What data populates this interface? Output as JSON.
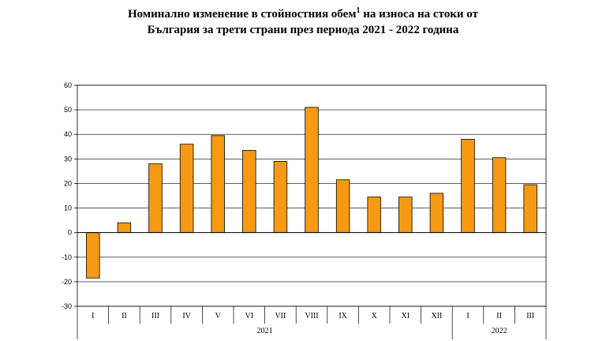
{
  "chart_data": {
    "type": "bar",
    "title_line1_a": "Номинално изменение в стойностния обем",
    "title_sup": "1",
    "title_line1_b": " на износа на стоки от",
    "title_line2": "България за трети страни през периода 2021 - 2022 година",
    "categories": [
      "I",
      "II",
      "III",
      "IV",
      "V",
      "VI",
      "VII",
      "VIII",
      "IX",
      "X",
      "XI",
      "XII",
      "I",
      "II",
      "III"
    ],
    "groups": [
      {
        "label": "2021",
        "start": 0,
        "end": 11
      },
      {
        "label": "2022",
        "start": 12,
        "end": 14
      }
    ],
    "values": [
      -18.5,
      4,
      28,
      36,
      39.5,
      33.5,
      29,
      51,
      21.5,
      14.5,
      14.5,
      16,
      38,
      30.5,
      19.5
    ],
    "ylim": [
      -30,
      60
    ],
    "yticks": [
      -30,
      -20,
      -10,
      0,
      10,
      20,
      30,
      40,
      50,
      60
    ],
    "grid": true,
    "bar_color": "#f59a12",
    "bar_edge": "#000000"
  }
}
